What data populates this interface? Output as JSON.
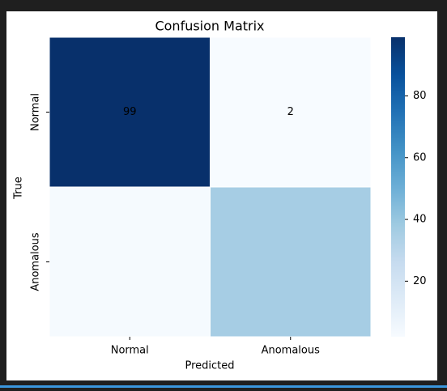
{
  "chart_data": {
    "type": "heatmap",
    "title": "Confusion Matrix",
    "xlabel": "Predicted",
    "ylabel": "True",
    "categories": [
      "Normal",
      "Anomalous"
    ],
    "y_categories": [
      "Normal",
      "Anomalous"
    ],
    "values": [
      [
        99,
        2
      ],
      [
        3,
        36
      ]
    ],
    "value_labels": [
      [
        "99",
        "2"
      ],
      [
        null,
        null
      ]
    ],
    "colormap": "Blues",
    "clim": [
      2,
      99
    ],
    "cticks": [
      20,
      40,
      60,
      80
    ]
  }
}
